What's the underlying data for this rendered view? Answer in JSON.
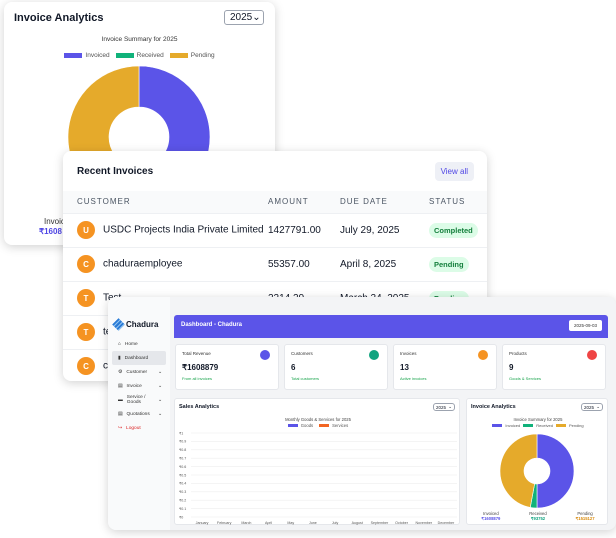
{
  "analytics_card": {
    "title": "Invoice Analytics",
    "year": "2025",
    "chart_title": "Invoice Summary for 2025",
    "legend": [
      "Invoiced",
      "Received",
      "Pending"
    ],
    "footer_label": "Invoic",
    "footer_value": "₹1608"
  },
  "recent": {
    "title": "Recent Invoices",
    "view_all": "View all",
    "columns": [
      "CUSTOMER",
      "AMOUNT",
      "DUE DATE",
      "STATUS"
    ],
    "rows": [
      {
        "initial": "U",
        "customer": "USDC Projects India Private Limited",
        "amount": "1427791.00",
        "due": "July 29, 2025",
        "status": "Completed"
      },
      {
        "initial": "C",
        "customer": "chaduraemployee",
        "amount": "55357.00",
        "due": "April 8, 2025",
        "status": "Pending"
      },
      {
        "initial": "T",
        "customer": "Test",
        "amount": "2214.29",
        "due": "March 24, 2025",
        "status": "Pending"
      },
      {
        "initial": "T",
        "customer": "tes",
        "amount": "",
        "due": "",
        "status": ""
      },
      {
        "initial": "C",
        "customer": "ch",
        "amount": "",
        "due": "",
        "status": ""
      }
    ]
  },
  "dashboard": {
    "brand": "Chadura",
    "header_title": "Dashboard - Chadura",
    "date": "2025-09-03",
    "nav": [
      "Home",
      "Dashboard",
      "Customer",
      "Invoice",
      "Service / Goods",
      "Quotations",
      "Logout"
    ],
    "stats": [
      {
        "label": "Total Revenue",
        "value": "₹1608879",
        "sub": "From all invoices",
        "color": "#5b54e8"
      },
      {
        "label": "Customers",
        "value": "6",
        "sub": "Total customers",
        "color": "#10a37f"
      },
      {
        "label": "Invoices",
        "value": "13",
        "sub": "Active invoices",
        "color": "#f59322"
      },
      {
        "label": "Products",
        "value": "9",
        "sub": "Goods & Services",
        "color": "#ef4444"
      }
    ],
    "sales_title": "Sales Analytics",
    "sales_year": "2025",
    "invoice_title": "Invoice Analytics",
    "invoice_year": "2025",
    "totals": [
      {
        "label": "Invoiced",
        "value": "₹1608879",
        "color": "#5b54e8"
      },
      {
        "label": "Received",
        "value": "₹93752",
        "color": "#10a37f"
      },
      {
        "label": "Pending",
        "value": "₹1515127",
        "color": "#d98a0b"
      }
    ]
  },
  "chart_data": [
    {
      "type": "pie",
      "title": "Invoice Summary for 2025",
      "categories": [
        "Invoiced",
        "Received",
        "Pending"
      ],
      "values": [
        1608879,
        93752,
        1515127
      ],
      "colors": [
        "#5b54e8",
        "#10b27a",
        "#e5aa2b"
      ],
      "legend": "top"
    },
    {
      "type": "bar",
      "title": "Monthly Goods & Services for 2025",
      "categories": [
        "January",
        "February",
        "March",
        "April",
        "May",
        "June",
        "July",
        "August",
        "September",
        "October",
        "November",
        "December"
      ],
      "series": [
        {
          "name": "Goods",
          "color": "#5b54e8",
          "values": [
            0,
            0,
            0,
            0,
            0,
            0,
            0,
            0,
            0,
            0,
            0,
            0
          ]
        },
        {
          "name": "Services",
          "color": "#f26522",
          "values": [
            0,
            0,
            0,
            0,
            0,
            0,
            0,
            0,
            0,
            0,
            0,
            0
          ]
        }
      ],
      "yticks": [
        "₹1",
        "₹0.9",
        "₹0.8",
        "₹0.7",
        "₹0.6",
        "₹0.5",
        "₹0.4",
        "₹0.3",
        "₹0.2",
        "₹0.1",
        "₹0"
      ],
      "ylim": [
        0,
        1
      ],
      "legend": "top"
    }
  ]
}
